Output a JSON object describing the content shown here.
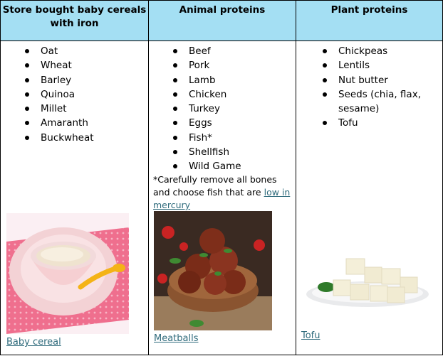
{
  "headers": {
    "col1": "Store bought baby cereals with iron",
    "col2": "Animal proteins",
    "col3": "Plant proteins"
  },
  "cereals": [
    "Oat",
    "Wheat",
    "Barley",
    "Quinoa",
    "Millet",
    "Amaranth",
    "Buckwheat"
  ],
  "animal": [
    "Beef",
    "Pork",
    "Lamb",
    "Chicken",
    "Turkey",
    "Eggs",
    "Fish*",
    "Shellfish",
    "Wild Game"
  ],
  "plant": [
    "Chickpeas",
    "Lentils",
    "Nut butter",
    "Seeds (chia, flax, sesame)",
    "Tofu"
  ],
  "note": {
    "text": "*Carefully remove all bones and choose fish that are ",
    "link": "low in mercury"
  },
  "captions": {
    "cereal": "Baby cereal",
    "meatballs": "Meatballs",
    "tofu": "Tofu"
  }
}
